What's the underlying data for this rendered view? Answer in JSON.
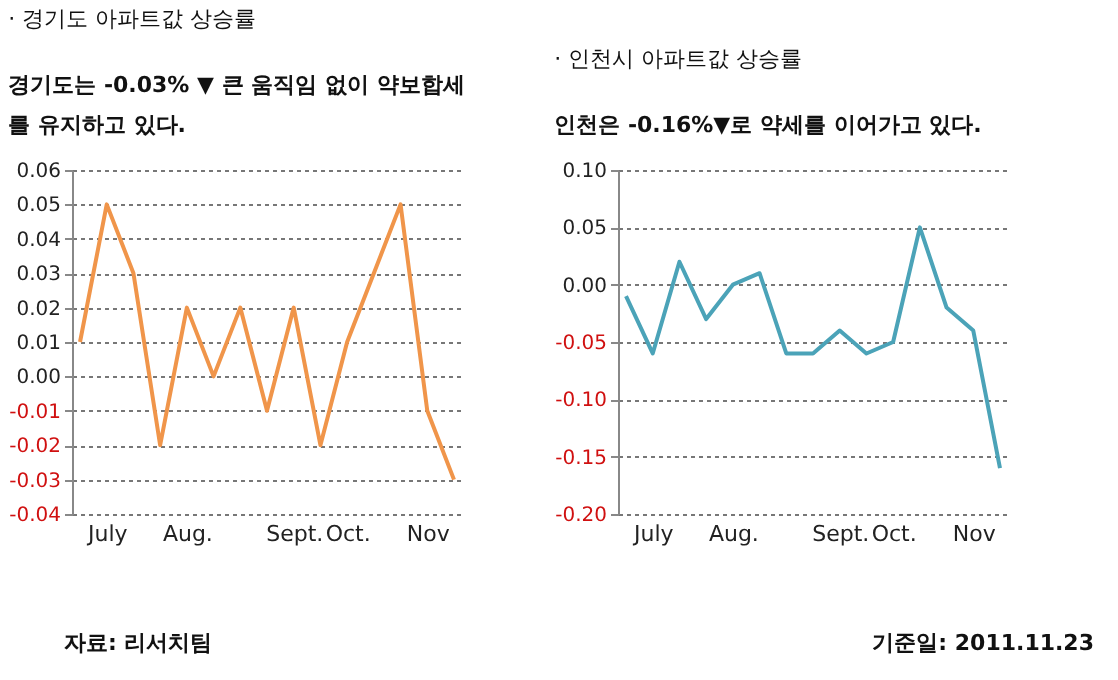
{
  "chart_data": [
    {
      "type": "line",
      "title": "· 경기도 아파트값 상승률",
      "subtitle": "경기도는 -0.03% ▼  큰 움직임 없이 약보합세\n를 유지하고 있다.",
      "categories": [
        null,
        "July",
        null,
        null,
        "Aug.",
        null,
        null,
        null,
        "Sept.",
        null,
        "Oct.",
        null,
        null,
        "Nov",
        null
      ],
      "series": [
        {
          "color": "#f0954a",
          "values": [
            0.01,
            0.05,
            0.03,
            -0.02,
            0.02,
            0.0,
            0.02,
            -0.01,
            0.02,
            -0.02,
            0.01,
            0.03,
            0.05,
            -0.01,
            -0.03
          ]
        }
      ],
      "ylim": [
        -0.04,
        0.06
      ],
      "yticks": [
        {
          "value": -0.04,
          "label": "-0.04"
        },
        {
          "value": -0.03,
          "label": "-0.03"
        },
        {
          "value": -0.02,
          "label": "-0.02"
        },
        {
          "value": -0.01,
          "label": "-0.01"
        },
        {
          "value": 0,
          "label": "0.00"
        },
        {
          "value": 0.01,
          "label": "0.01"
        },
        {
          "value": 0.02,
          "label": "0.02"
        },
        {
          "value": 0.03,
          "label": "0.03"
        },
        {
          "value": 0.04,
          "label": "0.04"
        },
        {
          "value": 0.05,
          "label": "0.05"
        },
        {
          "value": 0.06,
          "label": "0.06"
        }
      ],
      "grid": "y",
      "marker": "none",
      "line_style": "solid",
      "annotations": [
        "자료: 리서치팀"
      ]
    },
    {
      "type": "line",
      "title": "· 인천시 아파트값 상승률",
      "subtitle": "인천은 -0.16%▼로 약세를 이어가고 있다.",
      "categories": [
        null,
        "July",
        null,
        null,
        "Aug.",
        null,
        null,
        null,
        "Sept.",
        null,
        "Oct.",
        null,
        null,
        "Nov",
        null
      ],
      "series": [
        {
          "color": "#4ba3b8",
          "values": [
            -0.01,
            -0.06,
            0.02,
            -0.03,
            0.0,
            0.01,
            -0.06,
            -0.06,
            -0.04,
            -0.06,
            -0.05,
            0.05,
            -0.02,
            -0.04,
            -0.16
          ]
        }
      ],
      "ylim": [
        -0.2,
        0.1
      ],
      "yticks": [
        {
          "value": -0.2,
          "label": "-0.20"
        },
        {
          "value": -0.15,
          "label": "-0.15"
        },
        {
          "value": -0.1,
          "label": "-0.10"
        },
        {
          "value": -0.05,
          "label": "-0.05"
        },
        {
          "value": 0,
          "label": "0.00"
        },
        {
          "value": 0.05,
          "label": "0.05"
        },
        {
          "value": 0.1,
          "label": "0.10"
        }
      ],
      "grid": "y",
      "marker": "none",
      "line_style": "solid",
      "annotations": [
        "기준일: 2011.11.23"
      ]
    }
  ]
}
